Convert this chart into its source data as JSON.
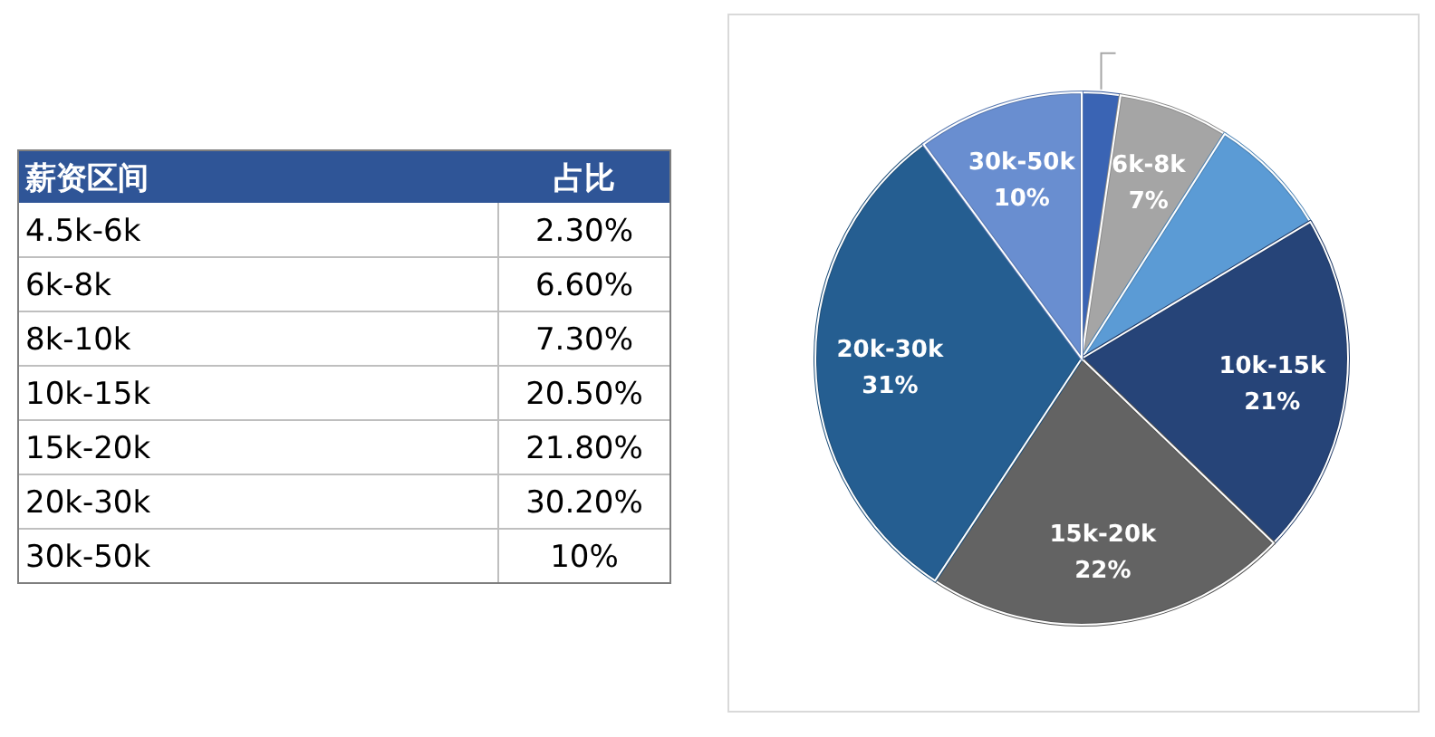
{
  "chart_data": [
    {
      "type": "other",
      "annotations": [
        "薪资区间",
        "占比"
      ],
      "categories": [
        "4.5k-6k",
        "6k-8k",
        "8k-10k",
        "10k-15k",
        "15k-20k",
        "20k-30k",
        "30k-50k"
      ],
      "values": [
        2.3,
        6.6,
        7.3,
        20.5,
        21.8,
        30.2,
        10
      ],
      "value_labels": [
        "2.30%",
        "6.60%",
        "7.30%",
        "20.50%",
        "21.80%",
        "30.20%",
        "10%"
      ],
      "color": "#2f5597"
    },
    {
      "type": "pie",
      "categories": [
        null,
        "6k-8k",
        null,
        "10k-15k",
        "15k-20k",
        "20k-30k",
        "30k-50k"
      ],
      "values": [
        2.33,
        6.69,
        7.4,
        20.77,
        22.09,
        30.6,
        10.12
      ],
      "value_labels": [
        null,
        "7%",
        null,
        "21%",
        "22%",
        "31%",
        "10%"
      ],
      "colors": [
        "#3a64b4",
        "#a5a5a5",
        "#5b9bd5",
        "#264478",
        "#636363",
        "#255e91",
        "#698ed0"
      ]
    }
  ]
}
